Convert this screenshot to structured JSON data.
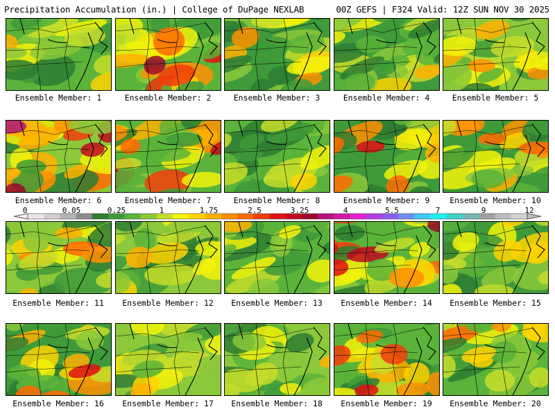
{
  "header": {
    "title": "Precipitation Accumulation (in.) | College of DuPage NEXLAB",
    "run": "00Z GEFS | F324 Valid: 12Z SUN NOV 30 2025"
  },
  "colorbar": {
    "ticks": [
      "0",
      "0.05",
      "0.25",
      "1",
      "1.75",
      "2.5",
      "3.25",
      "4",
      "5.5",
      "7",
      "9",
      "12"
    ],
    "colors": [
      "#e6e6e6",
      "#cfcfcf",
      "#b4b4b4",
      "#8c8c8c",
      "#2e7d32",
      "#3f9a3a",
      "#5bb33a",
      "#8bc83a",
      "#c6dd2a",
      "#f2f20a",
      "#ffd400",
      "#ffb000",
      "#ff9000",
      "#ff6a00",
      "#f23c0a",
      "#e01014",
      "#c00a1e",
      "#9a0a2a",
      "#b4147a",
      "#d21aa6",
      "#e61ed2",
      "#b43ce6",
      "#8c5af0",
      "#6e8cf5",
      "#3cc8f5",
      "#1ef0f0",
      "#3cd2c8",
      "#78b4b4",
      "#a0a0a0",
      "#bcbcbc",
      "#d2d2d2"
    ]
  },
  "members": [
    {
      "label": "Ensemble Member: 1",
      "hue": 0.35
    },
    {
      "label": "Ensemble Member: 2",
      "hue": 0.75
    },
    {
      "label": "Ensemble Member: 3",
      "hue": 0.3
    },
    {
      "label": "Ensemble Member: 4",
      "hue": 0.3
    },
    {
      "label": "Ensemble Member: 5",
      "hue": 0.35
    },
    {
      "label": "Ensemble Member: 6",
      "hue": 0.8
    },
    {
      "label": "Ensemble Member: 7",
      "hue": 0.8
    },
    {
      "label": "Ensemble Member: 8",
      "hue": 0.25
    },
    {
      "label": "Ensemble Member: 9",
      "hue": 0.55
    },
    {
      "label": "Ensemble Member: 10",
      "hue": 0.5
    },
    {
      "label": "Ensemble Member: 11",
      "hue": 0.45
    },
    {
      "label": "Ensemble Member: 12",
      "hue": 0.2
    },
    {
      "label": "Ensemble Member: 13",
      "hue": 0.2
    },
    {
      "label": "Ensemble Member: 14",
      "hue": 0.85
    },
    {
      "label": "Ensemble Member: 15",
      "hue": 0.3
    },
    {
      "label": "Ensemble Member: 16",
      "hue": 0.45
    },
    {
      "label": "Ensemble Member: 17",
      "hue": 0.4
    },
    {
      "label": "Ensemble Member: 18",
      "hue": 0.35
    },
    {
      "label": "Ensemble Member: 19",
      "hue": 0.45
    },
    {
      "label": "Ensemble Member: 20",
      "hue": 0.4
    }
  ]
}
